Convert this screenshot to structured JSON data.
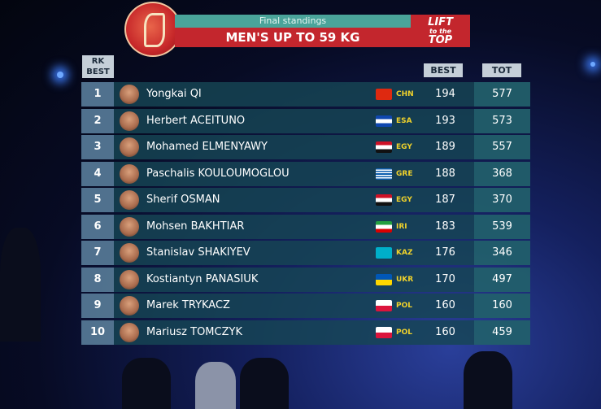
{
  "header": {
    "subtitle": "Final standings",
    "title": "MEN'S UP TO 59 KG",
    "brand": [
      "LIFT",
      "to the",
      "TOP"
    ]
  },
  "columns": {
    "rank": [
      "RK",
      "BEST"
    ],
    "best": "BEST",
    "total": "TOT"
  },
  "rows": [
    {
      "rank": "1",
      "first": "Yongkai",
      "last": "QI",
      "country": "CHN",
      "best": "194",
      "total": "577"
    },
    {
      "rank": "2",
      "first": "Herbert",
      "last": "ACEITUNO",
      "country": "ESA",
      "best": "193",
      "total": "573"
    },
    {
      "rank": "3",
      "first": "Mohamed",
      "last": "ELMENYAWY",
      "country": "EGY",
      "best": "189",
      "total": "557"
    },
    {
      "rank": "4",
      "first": "Paschalis",
      "last": "KOULOUMOGLOU",
      "country": "GRE",
      "best": "188",
      "total": "368"
    },
    {
      "rank": "5",
      "first": "Sherif",
      "last": "OSMAN",
      "country": "EGY",
      "best": "187",
      "total": "370"
    },
    {
      "rank": "6",
      "first": "Mohsen",
      "last": "BAKHTIAR",
      "country": "IRI",
      "best": "183",
      "total": "539"
    },
    {
      "rank": "7",
      "first": "Stanislav",
      "last": "SHAKIYEV",
      "country": "KAZ",
      "best": "176",
      "total": "346"
    },
    {
      "rank": "8",
      "first": "Kostiantyn",
      "last": "PANASIUK",
      "country": "UKR",
      "best": "170",
      "total": "497"
    },
    {
      "rank": "9",
      "first": "Marek",
      "last": "TRYKACZ",
      "country": "POL",
      "best": "160",
      "total": "160"
    },
    {
      "rank": "10",
      "first": "Mariusz",
      "last": "TOMCZYK",
      "country": "POL",
      "best": "160",
      "total": "459"
    }
  ]
}
